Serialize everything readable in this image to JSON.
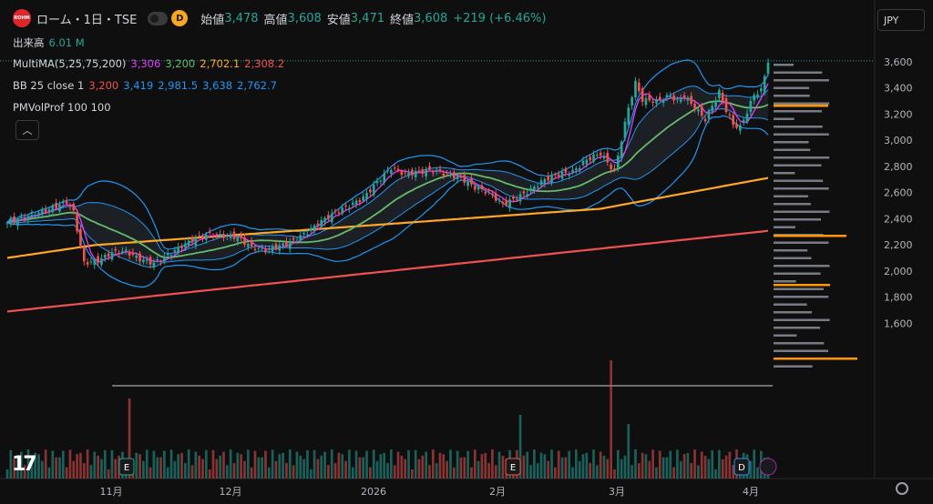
{
  "header": {
    "symbol": "ローム・1日・TSE",
    "logo_text": "ROHM",
    "timeframe_badge": "D",
    "open_label": "始値",
    "open": "3,478",
    "high_label": "高値",
    "high": "3,608",
    "low_label": "安値",
    "low": "3,471",
    "close_label": "終値",
    "close": "3,608",
    "change": "+219 (+6.46%)"
  },
  "volume_legend": {
    "label": "出来高",
    "value": "6.01 M"
  },
  "ma_legend": {
    "label": "MultiMA(5,25,75,200)",
    "v1": "3,306",
    "v2": "3,200",
    "v3": "2,702.1",
    "v4": "2,308.2"
  },
  "bb_legend": {
    "label": "BB 25 close 1",
    "v1": "3,200",
    "v2": "3,419",
    "v3": "2,981.5",
    "v4": "3,638",
    "v5": "2,762.7"
  },
  "vp_legend": {
    "label": "PMVolProf 100 100"
  },
  "currency": "JPY",
  "colors": {
    "up": "#26a69a",
    "down": "#ef5350",
    "ma5": "#e040fb",
    "ma25": "#66bb6a",
    "ma75": "#ffa726",
    "ma200": "#ef5350",
    "bb": "#2196f3",
    "green": "#26a69a",
    "orange": "#ff9800",
    "blue": "#2196f3",
    "red": "#ef5350"
  },
  "icons": {
    "collapse": "chevron-up-icon",
    "currency": "dropdown",
    "settings": "gear-icon"
  },
  "chart_data": {
    "type": "candlestick",
    "ylim": [
      1500,
      3660
    ],
    "y_ticks": [
      "3,600",
      "3,400",
      "3,200",
      "3,000",
      "2,800",
      "2,600",
      "2,400",
      "2,200",
      "2,000",
      "1,800",
      "1,600"
    ],
    "x_ticks": [
      "11月",
      "12月",
      "2026",
      "2月",
      "3月",
      "4月"
    ],
    "last_price": 3608,
    "series": [
      {
        "name": "MultiMA 5",
        "value": 3306
      },
      {
        "name": "MultiMA 25",
        "value": 3200
      },
      {
        "name": "MultiMA 75",
        "value": 2702.1
      },
      {
        "name": "MultiMA 200",
        "value": 2308.2
      },
      {
        "name": "BB basis",
        "value": 3200
      },
      {
        "name": "BB upper",
        "value": 3638
      },
      {
        "name": "BB lower",
        "value": 2762.7
      }
    ],
    "event_markers": [
      "E",
      "E",
      "E",
      "D"
    ]
  }
}
